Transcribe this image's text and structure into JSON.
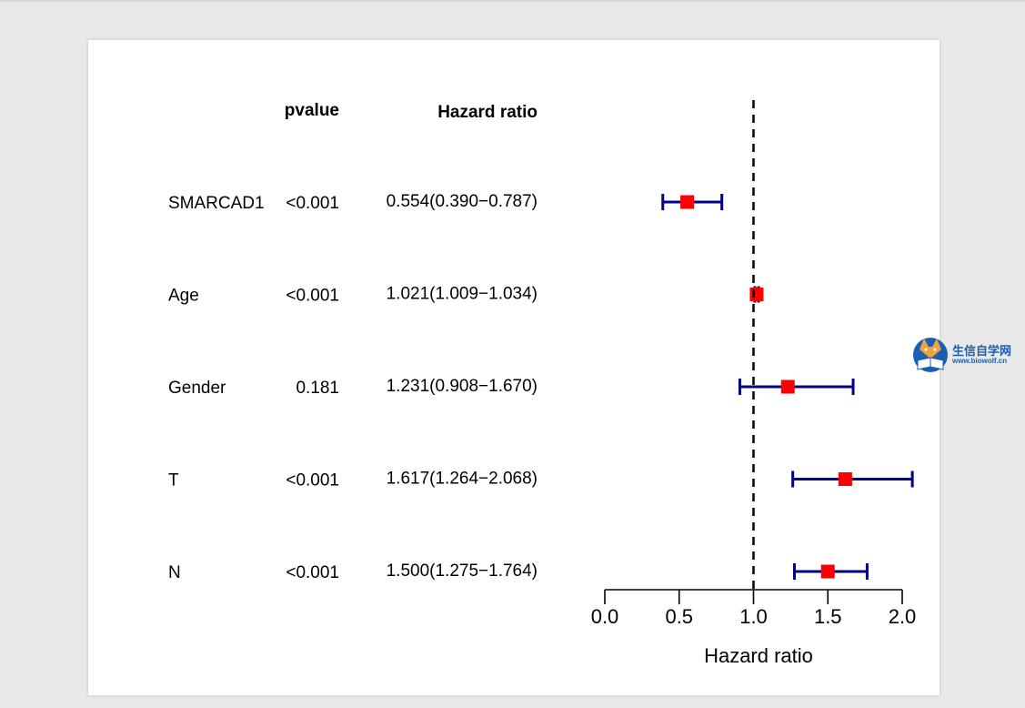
{
  "chart_data": {
    "type": "forest",
    "column_headers": {
      "pvalue": "pvalue",
      "hazard_ratio": "Hazard ratio"
    },
    "rows": [
      {
        "label": "SMARCAD1",
        "pvalue": "<0.001",
        "hr_text": "0.554(0.390−0.787)",
        "hr": 0.554,
        "lower": 0.39,
        "upper": 0.787
      },
      {
        "label": "Age",
        "pvalue": "<0.001",
        "hr_text": "1.021(1.009−1.034)",
        "hr": 1.021,
        "lower": 1.009,
        "upper": 1.034
      },
      {
        "label": "Gender",
        "pvalue": "0.181",
        "hr_text": "1.231(0.908−1.670)",
        "hr": 1.231,
        "lower": 0.908,
        "upper": 1.67
      },
      {
        "label": "T",
        "pvalue": "<0.001",
        "hr_text": "1.617(1.264−2.068)",
        "hr": 1.617,
        "lower": 1.264,
        "upper": 2.068
      },
      {
        "label": "N",
        "pvalue": "<0.001",
        "hr_text": "1.500(1.275−1.764)",
        "hr": 1.5,
        "lower": 1.275,
        "upper": 1.764
      }
    ],
    "x_ticks": [
      "0.0",
      "0.5",
      "1.0",
      "1.5",
      "2.0"
    ],
    "xlim": [
      0,
      2
    ],
    "reference_line": 1.0,
    "xlabel": "Hazard ratio",
    "colors": {
      "point": "#ff0000",
      "ci": "#00008b",
      "reference": "#000000"
    }
  },
  "watermark": {
    "name": "生信自学网",
    "url": "www.biowolf.cn"
  }
}
